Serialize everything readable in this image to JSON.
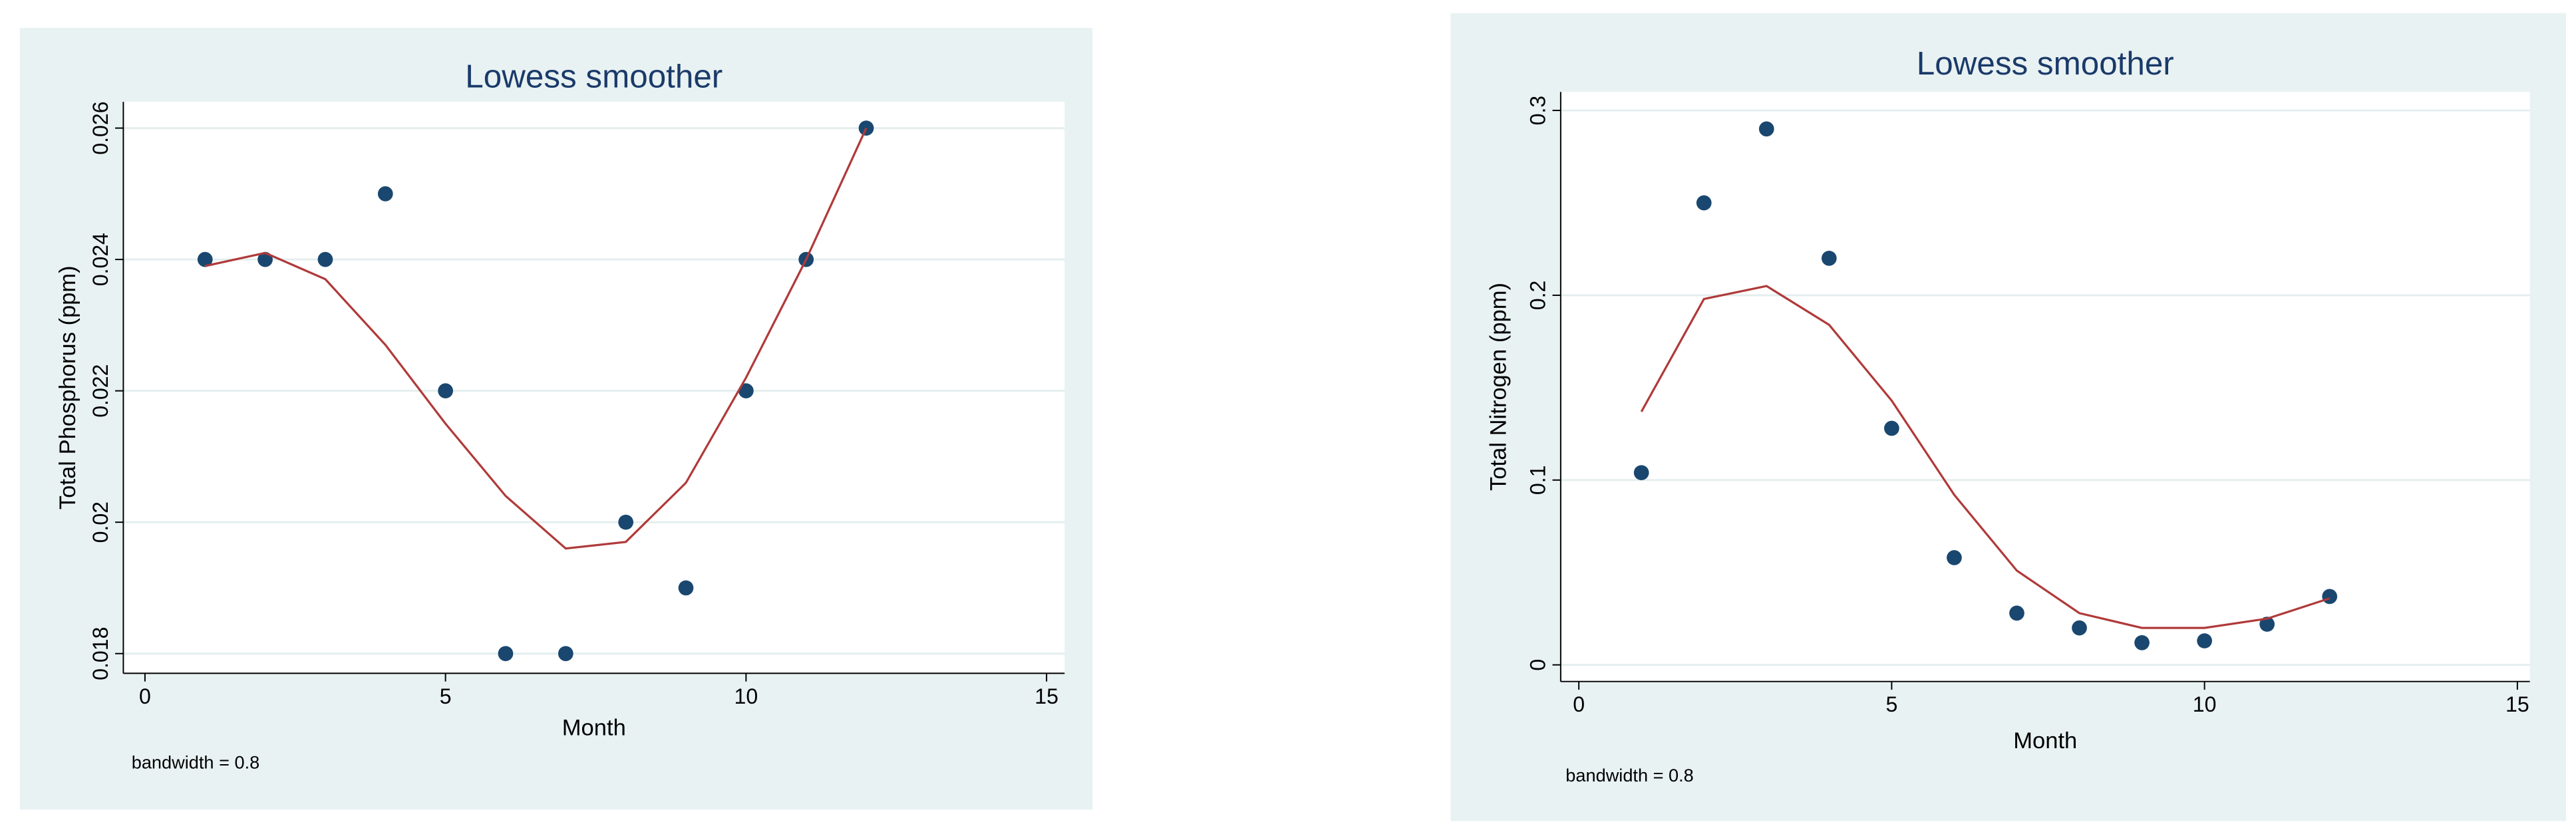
{
  "chart_data": [
    {
      "type": "scatter",
      "title": "Lowess smoother",
      "xlabel": "Month",
      "ylabel": "Total Phosphorus (ppm)",
      "note": "bandwidth = 0.8",
      "x": [
        1,
        2,
        3,
        4,
        5,
        6,
        7,
        8,
        9,
        10,
        11,
        12
      ],
      "series": [
        {
          "color": "#1a476f",
          "style": "points",
          "values": [
            0.024,
            0.024,
            0.024,
            0.025,
            0.022,
            0.018,
            0.018,
            0.02,
            0.019,
            0.022,
            0.024,
            0.026
          ]
        },
        {
          "color": "#b03a3a",
          "style": "line",
          "values": [
            0.0239,
            0.0241,
            0.0237,
            0.0227,
            0.0215,
            0.0204,
            0.0196,
            0.0197,
            0.0206,
            0.0222,
            0.024,
            0.026
          ]
        }
      ],
      "xlim": [
        -0.36,
        15.3
      ],
      "ylim": [
        0.0177,
        0.0264
      ],
      "xticks": [
        0,
        5,
        10,
        15
      ],
      "yticks": [
        0.018,
        0.02,
        0.022,
        0.024,
        0.026
      ],
      "grid": true
    },
    {
      "type": "scatter",
      "title": "Lowess smoother",
      "xlabel": "Month",
      "ylabel": "Total Nitrogen (ppm)",
      "note": "bandwidth = 0.8",
      "x": [
        1,
        2,
        3,
        4,
        5,
        6,
        7,
        8,
        9,
        10,
        11,
        12
      ],
      "series": [
        {
          "color": "#1a476f",
          "style": "points",
          "values": [
            0.104,
            0.25,
            0.29,
            0.22,
            0.128,
            0.058,
            0.028,
            0.02,
            0.012,
            0.013,
            0.022,
            0.037
          ]
        },
        {
          "color": "#b03a3a",
          "style": "line",
          "values": [
            0.137,
            0.198,
            0.205,
            0.184,
            0.143,
            0.092,
            0.051,
            0.028,
            0.02,
            0.02,
            0.025,
            0.036
          ]
        }
      ],
      "xlim": [
        -0.29,
        15.2
      ],
      "ylim": [
        -0.009,
        0.31
      ],
      "xticks": [
        0,
        5,
        10,
        15
      ],
      "yticks": [
        0,
        0.1,
        0.2,
        0.3
      ],
      "grid": true
    }
  ]
}
